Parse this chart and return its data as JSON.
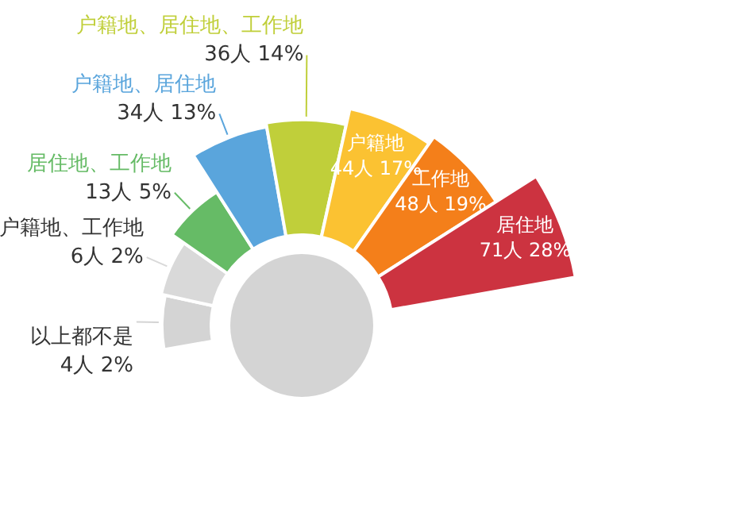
{
  "chart_data": {
    "type": "other",
    "categories": [
      "以上都不是",
      "户籍地、工作地",
      "居住地、工作地",
      "户籍地、居住地",
      "户籍地、居住地、工作地",
      "户籍地",
      "工作地",
      "居住地"
    ],
    "values": [
      4,
      6,
      13,
      34,
      36,
      44,
      48,
      71
    ],
    "value_labels": [
      "4人 2%",
      "6人 2%",
      "13人 5%",
      "34人 13%",
      "36人 14%",
      "44人 17%",
      "48人 19%",
      "71人 28%"
    ],
    "colors": [
      "#d4d4d4",
      "#d9d9d9",
      "#66bb66",
      "#5aa5dc",
      "#c0cf3a",
      "#fbc232",
      "#f47f1a",
      "#cc3340"
    ],
    "legend": false
  }
}
